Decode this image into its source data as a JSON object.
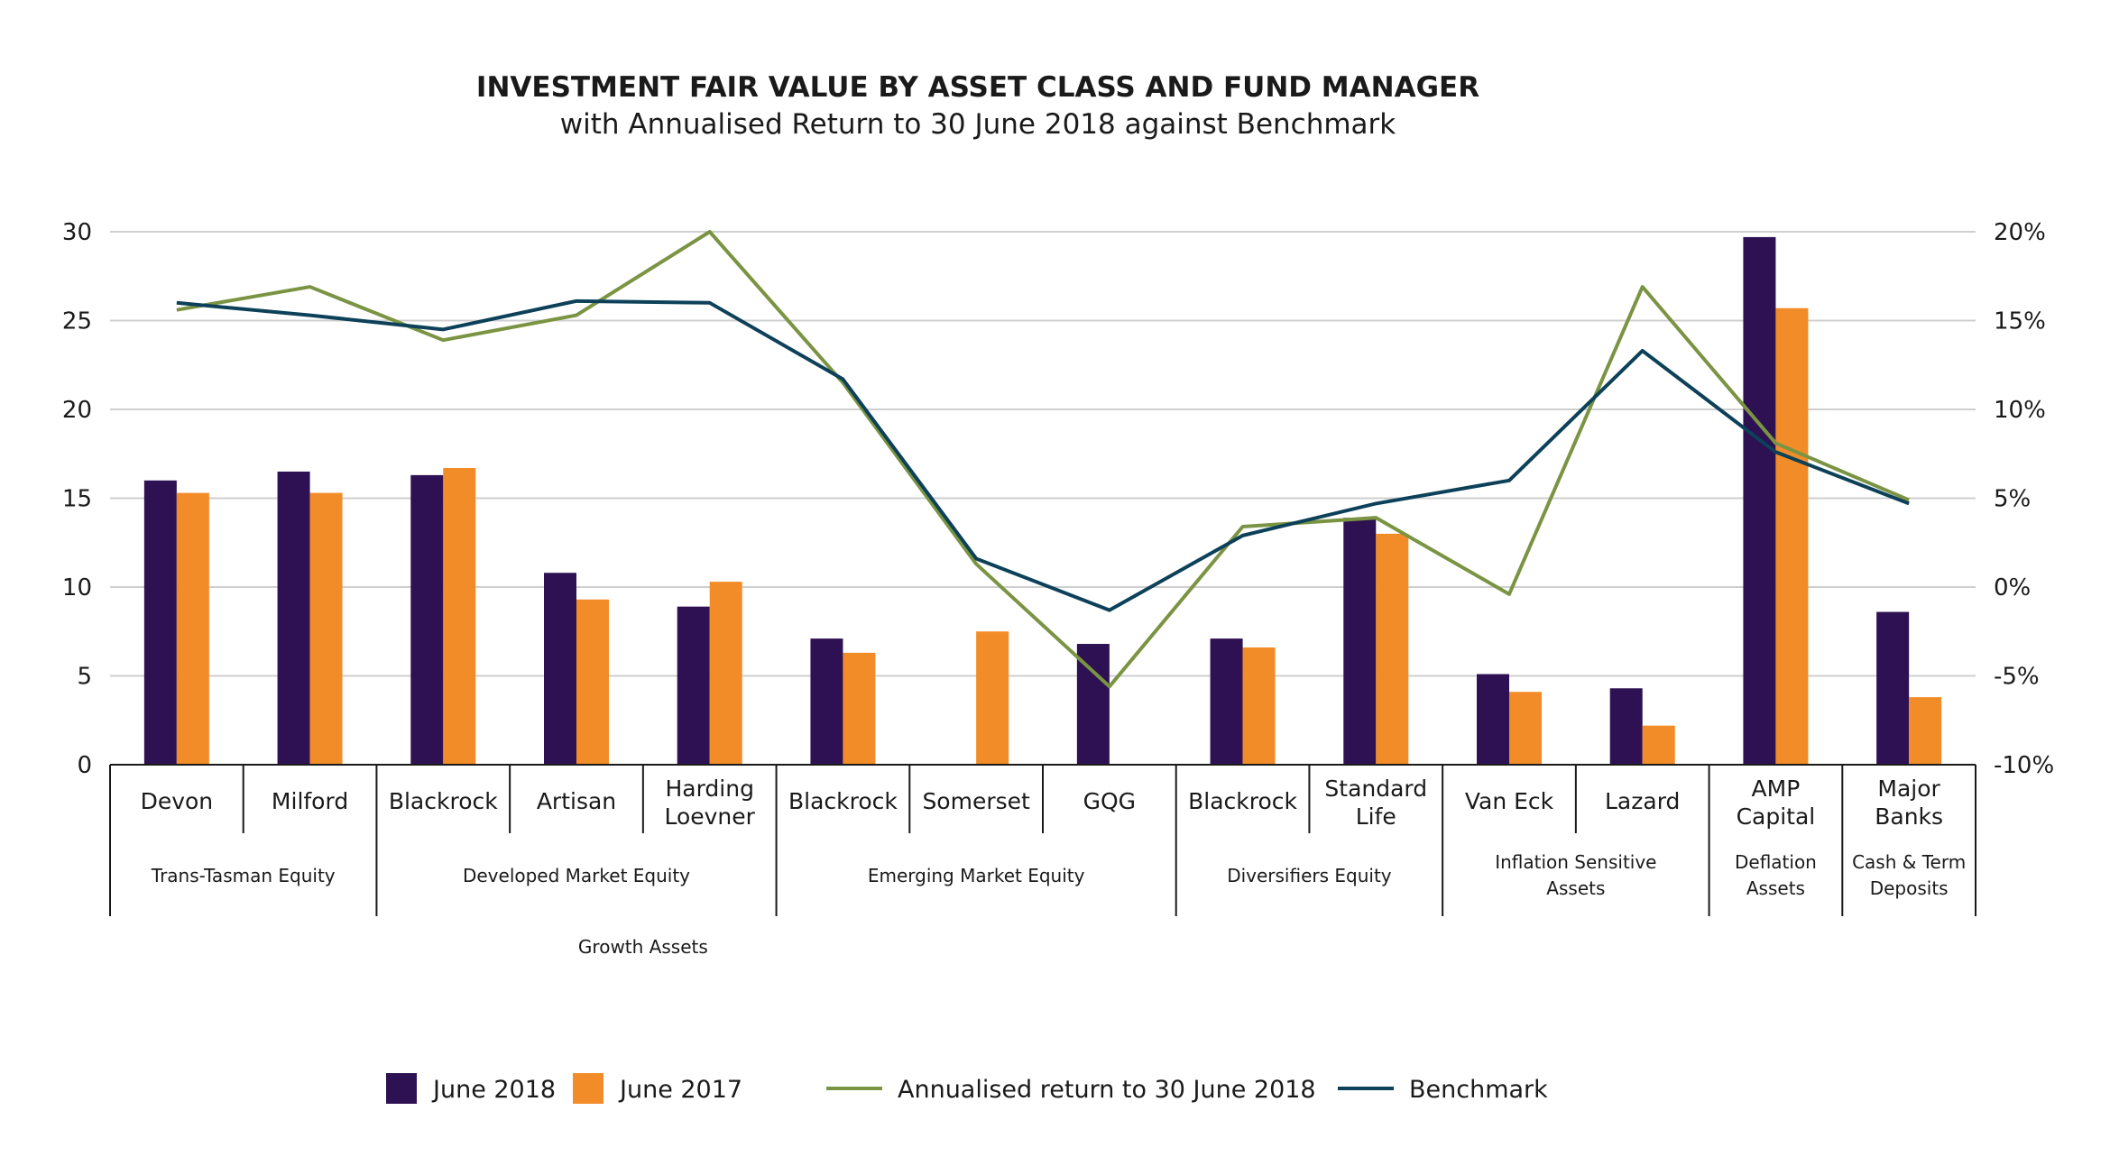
{
  "chart_data": {
    "type": "bar",
    "title": "INVESTMENT FAIR VALUE BY ASSET CLASS AND FUND MANAGER",
    "subtitle": "with Annualised Return to 30 June 2018 against Benchmark",
    "ylim": [
      0,
      30
    ],
    "y_ticks": [
      "0",
      "5",
      "10",
      "15",
      "20",
      "25",
      "30"
    ],
    "y2lim": [
      -10,
      20
    ],
    "y2_ticks": [
      "-10%",
      "-5%",
      "0%",
      "5%",
      "10%",
      "15%",
      "20%"
    ],
    "grid": true,
    "legend_position": "bottom",
    "categories": [
      [
        "Devon"
      ],
      [
        "Milford"
      ],
      [
        "Blackrock"
      ],
      [
        "Artisan"
      ],
      [
        "Harding",
        "Loevner"
      ],
      [
        "Blackrock"
      ],
      [
        "Somerset"
      ],
      [
        "GQG"
      ],
      [
        "Blackrock"
      ],
      [
        "Standard",
        "Life"
      ],
      [
        "Van Eck"
      ],
      [
        "Lazard"
      ],
      [
        "AMP",
        "Capital"
      ],
      [
        "Major",
        "Banks"
      ]
    ],
    "groups": [
      {
        "label": [
          "Trans-Tasman Equity"
        ],
        "start": 0,
        "end": 1
      },
      {
        "label": [
          "Developed Market Equity"
        ],
        "start": 2,
        "end": 4
      },
      {
        "label": [
          "Emerging Market Equity"
        ],
        "start": 5,
        "end": 7
      },
      {
        "label": [
          "Diversifiers Equity"
        ],
        "start": 8,
        "end": 9
      },
      {
        "label": [
          "Inflation Sensitive",
          "Assets"
        ],
        "start": 10,
        "end": 11
      },
      {
        "label": [
          "Deflation",
          "Assets"
        ],
        "start": 12,
        "end": 12
      },
      {
        "label": [
          "Cash & Term",
          "Deposits"
        ],
        "start": 13,
        "end": 13
      }
    ],
    "super_groups": [
      {
        "label": "Growth Assets",
        "start": 0,
        "end": 7
      }
    ],
    "bar_series": [
      {
        "name": "June 2018",
        "color": "#2d1152",
        "values": [
          16.0,
          16.5,
          16.3,
          10.8,
          8.9,
          7.1,
          null,
          6.8,
          7.1,
          13.9,
          5.1,
          4.3,
          29.7,
          8.6
        ]
      },
      {
        "name": "June 2017",
        "color": "#f28c28",
        "values": [
          15.3,
          15.3,
          16.7,
          9.3,
          10.3,
          6.3,
          7.5,
          null,
          6.6,
          13.0,
          4.1,
          2.2,
          25.7,
          3.8
        ]
      }
    ],
    "line_series": [
      {
        "name": "Annualised return to 30 June 2018",
        "color": "#7a9443",
        "axis": "right",
        "values": [
          15.6,
          16.9,
          13.9,
          15.3,
          20.0,
          11.5,
          1.3,
          -5.6,
          3.4,
          3.9,
          -0.4,
          16.9,
          8.1,
          4.9
        ]
      },
      {
        "name": "Benchmark",
        "color": "#0d4159",
        "axis": "right",
        "values": [
          16.0,
          15.3,
          14.5,
          16.1,
          16.0,
          11.7,
          1.6,
          -1.3,
          2.9,
          4.7,
          6.0,
          13.3,
          7.6,
          4.7
        ]
      }
    ]
  }
}
